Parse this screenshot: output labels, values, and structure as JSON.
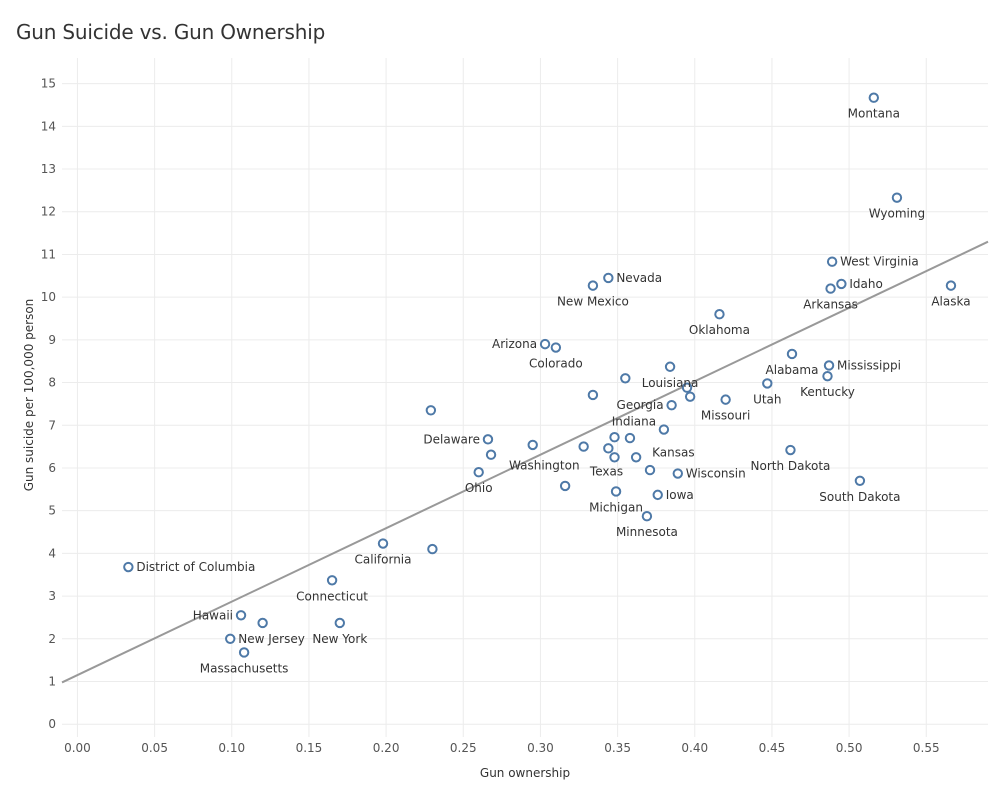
{
  "chart_data": {
    "type": "scatter",
    "title": "Gun Suicide vs. Gun Ownership",
    "xlabel": "Gun ownership",
    "ylabel": "Gun suicide per 100,000 person",
    "xlim": [
      -0.01,
      0.59
    ],
    "ylim": [
      -0.3,
      15.6
    ],
    "x_ticks": [
      "0.00",
      "0.05",
      "0.10",
      "0.15",
      "0.20",
      "0.25",
      "0.30",
      "0.35",
      "0.40",
      "0.45",
      "0.50",
      "0.55"
    ],
    "y_ticks": [
      "0",
      "1",
      "2",
      "3",
      "4",
      "5",
      "6",
      "7",
      "8",
      "9",
      "10",
      "11",
      "12",
      "13",
      "14",
      "15"
    ],
    "grid": true,
    "marker_color": "#4e79a7",
    "trend_color": "#999999",
    "trend_line": {
      "intercept": 1.15,
      "slope": 17.2
    },
    "points": [
      {
        "label": "Montana",
        "x": 0.516,
        "y": 14.67,
        "pos": "below"
      },
      {
        "label": "Wyoming",
        "x": 0.531,
        "y": 12.33,
        "pos": "below"
      },
      {
        "label": "West Virginia",
        "x": 0.489,
        "y": 10.83,
        "pos": "right"
      },
      {
        "label": "Idaho",
        "x": 0.495,
        "y": 10.31,
        "pos": "right"
      },
      {
        "label": "Arkansas",
        "x": 0.488,
        "y": 10.2,
        "pos": "below"
      },
      {
        "label": "Alaska",
        "x": 0.566,
        "y": 10.27,
        "pos": "below"
      },
      {
        "label": "Nevada",
        "x": 0.344,
        "y": 10.45,
        "pos": "right"
      },
      {
        "label": "New Mexico",
        "x": 0.334,
        "y": 10.27,
        "pos": "below"
      },
      {
        "label": "Oklahoma",
        "x": 0.416,
        "y": 9.6,
        "pos": "below"
      },
      {
        "label": "Arizona",
        "x": 0.303,
        "y": 8.9,
        "pos": "left"
      },
      {
        "label": "Colorado",
        "x": 0.31,
        "y": 8.82,
        "pos": "below"
      },
      {
        "label": "Alabama",
        "x": 0.463,
        "y": 8.67,
        "pos": "below"
      },
      {
        "label": "Mississippi",
        "x": 0.487,
        "y": 8.4,
        "pos": "right"
      },
      {
        "label": "Kentucky",
        "x": 0.486,
        "y": 8.15,
        "pos": "below"
      },
      {
        "label": "Louisiana",
        "x": 0.384,
        "y": 8.37,
        "pos": "below"
      },
      {
        "label": "",
        "x": 0.355,
        "y": 8.1,
        "pos": "none"
      },
      {
        "label": "Utah",
        "x": 0.447,
        "y": 7.98,
        "pos": "below"
      },
      {
        "label": "",
        "x": 0.395,
        "y": 7.88,
        "pos": "none"
      },
      {
        "label": "",
        "x": 0.397,
        "y": 7.67,
        "pos": "none"
      },
      {
        "label": "Georgia",
        "x": 0.385,
        "y": 7.47,
        "pos": "left"
      },
      {
        "label": "Missouri",
        "x": 0.42,
        "y": 7.6,
        "pos": "below"
      },
      {
        "label": "",
        "x": 0.334,
        "y": 7.71,
        "pos": "none"
      },
      {
        "label": "",
        "x": 0.229,
        "y": 7.35,
        "pos": "none"
      },
      {
        "label": "Indiana",
        "x": 0.38,
        "y": 6.9,
        "pos": "above-left"
      },
      {
        "label": "Delaware",
        "x": 0.266,
        "y": 6.67,
        "pos": "left"
      },
      {
        "label": "",
        "x": 0.348,
        "y": 6.72,
        "pos": "none"
      },
      {
        "label": "",
        "x": 0.358,
        "y": 6.7,
        "pos": "none"
      },
      {
        "label": "",
        "x": 0.295,
        "y": 6.54,
        "pos": "none"
      },
      {
        "label": "",
        "x": 0.328,
        "y": 6.5,
        "pos": "none"
      },
      {
        "label": "",
        "x": 0.344,
        "y": 6.46,
        "pos": "none"
      },
      {
        "label": "North Dakota",
        "x": 0.462,
        "y": 6.42,
        "pos": "below"
      },
      {
        "label": "Washington",
        "x": 0.268,
        "y": 6.31,
        "pos": "below-right"
      },
      {
        "label": "Kansas",
        "x": 0.362,
        "y": 6.25,
        "pos": "right-up"
      },
      {
        "label": "Texas",
        "x": 0.348,
        "y": 6.25,
        "pos": "below-left"
      },
      {
        "label": "",
        "x": 0.371,
        "y": 5.95,
        "pos": "none"
      },
      {
        "label": "Wisconsin",
        "x": 0.389,
        "y": 5.87,
        "pos": "right"
      },
      {
        "label": "Ohio",
        "x": 0.26,
        "y": 5.9,
        "pos": "below"
      },
      {
        "label": "South Dakota",
        "x": 0.507,
        "y": 5.7,
        "pos": "below"
      },
      {
        "label": "",
        "x": 0.316,
        "y": 5.58,
        "pos": "none"
      },
      {
        "label": "Michigan",
        "x": 0.349,
        "y": 5.45,
        "pos": "below"
      },
      {
        "label": "Iowa",
        "x": 0.376,
        "y": 5.37,
        "pos": "right"
      },
      {
        "label": "Minnesota",
        "x": 0.369,
        "y": 4.87,
        "pos": "below"
      },
      {
        "label": "California",
        "x": 0.198,
        "y": 4.23,
        "pos": "below"
      },
      {
        "label": "",
        "x": 0.23,
        "y": 4.1,
        "pos": "none"
      },
      {
        "label": "District of Columbia",
        "x": 0.033,
        "y": 3.68,
        "pos": "right"
      },
      {
        "label": "Connecticut",
        "x": 0.165,
        "y": 3.37,
        "pos": "below"
      },
      {
        "label": "Hawaii",
        "x": 0.106,
        "y": 2.55,
        "pos": "left"
      },
      {
        "label": "",
        "x": 0.12,
        "y": 2.37,
        "pos": "none"
      },
      {
        "label": "New York",
        "x": 0.17,
        "y": 2.37,
        "pos": "below"
      },
      {
        "label": "New Jersey",
        "x": 0.099,
        "y": 2.0,
        "pos": "right"
      },
      {
        "label": "Massachusetts",
        "x": 0.108,
        "y": 1.68,
        "pos": "below"
      }
    ]
  }
}
